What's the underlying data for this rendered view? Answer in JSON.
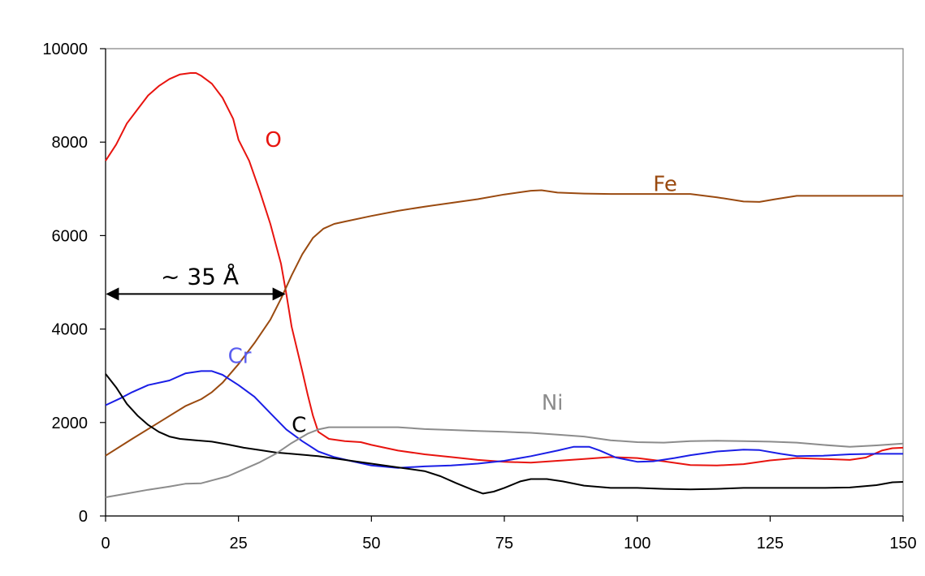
{
  "chart_data": {
    "type": "line",
    "xlim": [
      0,
      150
    ],
    "ylim": [
      0,
      10000
    ],
    "x_ticks": [
      0,
      25,
      50,
      75,
      100,
      125,
      150
    ],
    "y_ticks": [
      0,
      2000,
      4000,
      6000,
      8000,
      10000
    ],
    "grid": false,
    "annotation": {
      "text": "~ 35 Å",
      "x_from": 0,
      "x_to": 33,
      "y": 4750
    },
    "series": [
      {
        "name": "O",
        "color": "#e8140f",
        "label_at": [
          30,
          7900
        ],
        "points": [
          [
            0,
            7600
          ],
          [
            2,
            7950
          ],
          [
            4,
            8400
          ],
          [
            6,
            8700
          ],
          [
            8,
            9000
          ],
          [
            10,
            9200
          ],
          [
            12,
            9350
          ],
          [
            14,
            9450
          ],
          [
            16,
            9480
          ],
          [
            17,
            9480
          ],
          [
            18,
            9420
          ],
          [
            20,
            9250
          ],
          [
            22,
            8950
          ],
          [
            24,
            8500
          ],
          [
            25,
            8050
          ],
          [
            27,
            7600
          ],
          [
            29,
            6950
          ],
          [
            31,
            6250
          ],
          [
            33,
            5400
          ],
          [
            34,
            4750
          ],
          [
            35,
            4050
          ],
          [
            37,
            3100
          ],
          [
            38,
            2600
          ],
          [
            39,
            2150
          ],
          [
            40,
            1800
          ],
          [
            42,
            1650
          ],
          [
            45,
            1600
          ],
          [
            48,
            1580
          ],
          [
            50,
            1520
          ],
          [
            55,
            1400
          ],
          [
            60,
            1320
          ],
          [
            65,
            1260
          ],
          [
            70,
            1200
          ],
          [
            75,
            1160
          ],
          [
            80,
            1140
          ],
          [
            85,
            1180
          ],
          [
            90,
            1220
          ],
          [
            95,
            1260
          ],
          [
            100,
            1240
          ],
          [
            105,
            1170
          ],
          [
            110,
            1090
          ],
          [
            115,
            1080
          ],
          [
            120,
            1110
          ],
          [
            125,
            1190
          ],
          [
            130,
            1240
          ],
          [
            135,
            1220
          ],
          [
            140,
            1200
          ],
          [
            143,
            1250
          ],
          [
            146,
            1400
          ],
          [
            148,
            1450
          ],
          [
            150,
            1460
          ]
        ]
      },
      {
        "name": "Fe",
        "color": "#9a4a10",
        "label_at": [
          103,
          6950
        ],
        "points": [
          [
            0,
            1290
          ],
          [
            5,
            1650
          ],
          [
            10,
            2000
          ],
          [
            15,
            2350
          ],
          [
            18,
            2500
          ],
          [
            20,
            2650
          ],
          [
            22,
            2850
          ],
          [
            25,
            3250
          ],
          [
            28,
            3700
          ],
          [
            31,
            4200
          ],
          [
            33,
            4650
          ],
          [
            35,
            5150
          ],
          [
            37,
            5600
          ],
          [
            39,
            5950
          ],
          [
            41,
            6150
          ],
          [
            43,
            6250
          ],
          [
            45,
            6300
          ],
          [
            50,
            6420
          ],
          [
            55,
            6530
          ],
          [
            60,
            6620
          ],
          [
            65,
            6700
          ],
          [
            70,
            6780
          ],
          [
            75,
            6880
          ],
          [
            80,
            6960
          ],
          [
            82,
            6970
          ],
          [
            85,
            6920
          ],
          [
            90,
            6900
          ],
          [
            95,
            6890
          ],
          [
            100,
            6890
          ],
          [
            105,
            6890
          ],
          [
            110,
            6890
          ],
          [
            115,
            6820
          ],
          [
            120,
            6730
          ],
          [
            123,
            6720
          ],
          [
            126,
            6780
          ],
          [
            130,
            6850
          ],
          [
            135,
            6850
          ],
          [
            140,
            6850
          ],
          [
            145,
            6850
          ],
          [
            150,
            6850
          ]
        ]
      },
      {
        "name": "Cr",
        "color": "#1a1ee6",
        "label_at": [
          23,
          3270
        ],
        "points": [
          [
            0,
            2370
          ],
          [
            3,
            2530
          ],
          [
            5,
            2650
          ],
          [
            8,
            2800
          ],
          [
            12,
            2900
          ],
          [
            15,
            3050
          ],
          [
            18,
            3100
          ],
          [
            20,
            3100
          ],
          [
            22,
            3020
          ],
          [
            25,
            2800
          ],
          [
            28,
            2550
          ],
          [
            31,
            2200
          ],
          [
            34,
            1850
          ],
          [
            37,
            1600
          ],
          [
            40,
            1380
          ],
          [
            43,
            1260
          ],
          [
            46,
            1180
          ],
          [
            50,
            1080
          ],
          [
            55,
            1030
          ],
          [
            60,
            1060
          ],
          [
            65,
            1080
          ],
          [
            70,
            1120
          ],
          [
            75,
            1180
          ],
          [
            80,
            1280
          ],
          [
            85,
            1400
          ],
          [
            88,
            1480
          ],
          [
            91,
            1480
          ],
          [
            93,
            1400
          ],
          [
            96,
            1250
          ],
          [
            100,
            1160
          ],
          [
            103,
            1170
          ],
          [
            107,
            1240
          ],
          [
            110,
            1300
          ],
          [
            115,
            1380
          ],
          [
            120,
            1420
          ],
          [
            123,
            1410
          ],
          [
            127,
            1330
          ],
          [
            130,
            1280
          ],
          [
            135,
            1290
          ],
          [
            140,
            1320
          ],
          [
            145,
            1330
          ],
          [
            150,
            1330
          ]
        ]
      },
      {
        "name": "C",
        "color": "#000000",
        "label_at": [
          35,
          1800
        ],
        "points": [
          [
            0,
            3040
          ],
          [
            2,
            2750
          ],
          [
            4,
            2400
          ],
          [
            6,
            2150
          ],
          [
            8,
            1950
          ],
          [
            10,
            1800
          ],
          [
            12,
            1700
          ],
          [
            14,
            1650
          ],
          [
            17,
            1620
          ],
          [
            20,
            1590
          ],
          [
            23,
            1530
          ],
          [
            26,
            1460
          ],
          [
            29,
            1410
          ],
          [
            32,
            1360
          ],
          [
            35,
            1330
          ],
          [
            40,
            1280
          ],
          [
            45,
            1200
          ],
          [
            50,
            1120
          ],
          [
            55,
            1040
          ],
          [
            60,
            960
          ],
          [
            63,
            850
          ],
          [
            66,
            700
          ],
          [
            69,
            560
          ],
          [
            71,
            480
          ],
          [
            73,
            520
          ],
          [
            75,
            600
          ],
          [
            78,
            740
          ],
          [
            80,
            790
          ],
          [
            83,
            790
          ],
          [
            86,
            740
          ],
          [
            90,
            650
          ],
          [
            95,
            600
          ],
          [
            100,
            600
          ],
          [
            105,
            580
          ],
          [
            110,
            570
          ],
          [
            115,
            580
          ],
          [
            120,
            600
          ],
          [
            125,
            600
          ],
          [
            130,
            600
          ],
          [
            135,
            600
          ],
          [
            140,
            610
          ],
          [
            145,
            660
          ],
          [
            148,
            720
          ],
          [
            150,
            730
          ]
        ]
      },
      {
        "name": "Ni",
        "color": "#8c8c8c",
        "label_at": [
          82,
          2270
        ],
        "points": [
          [
            0,
            400
          ],
          [
            4,
            480
          ],
          [
            8,
            560
          ],
          [
            12,
            630
          ],
          [
            15,
            690
          ],
          [
            18,
            700
          ],
          [
            20,
            760
          ],
          [
            23,
            850
          ],
          [
            26,
            1000
          ],
          [
            29,
            1150
          ],
          [
            32,
            1330
          ],
          [
            35,
            1560
          ],
          [
            38,
            1760
          ],
          [
            40,
            1850
          ],
          [
            42,
            1900
          ],
          [
            45,
            1900
          ],
          [
            50,
            1900
          ],
          [
            55,
            1900
          ],
          [
            60,
            1860
          ],
          [
            65,
            1840
          ],
          [
            70,
            1820
          ],
          [
            75,
            1800
          ],
          [
            80,
            1780
          ],
          [
            85,
            1740
          ],
          [
            90,
            1700
          ],
          [
            95,
            1620
          ],
          [
            100,
            1580
          ],
          [
            105,
            1570
          ],
          [
            110,
            1600
          ],
          [
            115,
            1610
          ],
          [
            120,
            1600
          ],
          [
            125,
            1590
          ],
          [
            130,
            1570
          ],
          [
            135,
            1520
          ],
          [
            140,
            1480
          ],
          [
            145,
            1510
          ],
          [
            150,
            1550
          ]
        ]
      }
    ]
  }
}
